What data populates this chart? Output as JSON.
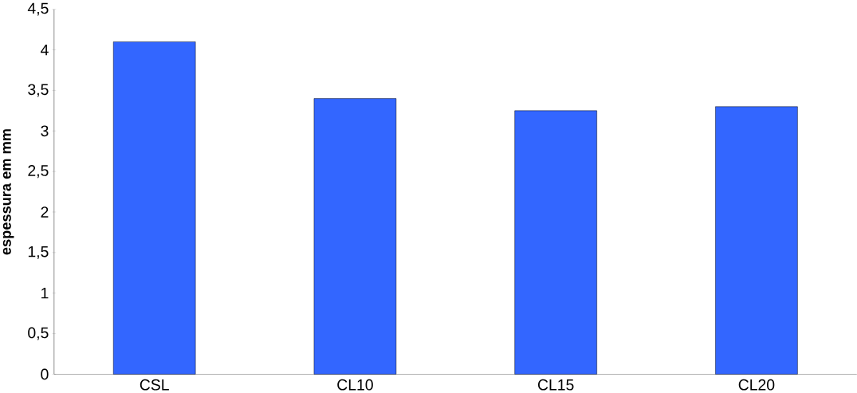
{
  "chart_data": {
    "type": "bar",
    "ylabel": "espessura em mm",
    "categories": [
      "CSL",
      "CL10",
      "CL15",
      "CL20"
    ],
    "values": [
      4.1,
      3.4,
      3.25,
      3.3
    ],
    "color": "#3366ff",
    "ylim": [
      0,
      4.5
    ],
    "yticks": [
      0,
      {
        "value": 0.5,
        "label": "0,5"
      },
      1,
      {
        "value": 1.5,
        "label": "1,5"
      },
      2,
      {
        "value": 2.5,
        "label": "2,5"
      },
      3,
      {
        "value": 3.5,
        "label": "3,5"
      },
      4,
      {
        "value": 4.5,
        "label": "4,5"
      }
    ],
    "grid": false
  }
}
